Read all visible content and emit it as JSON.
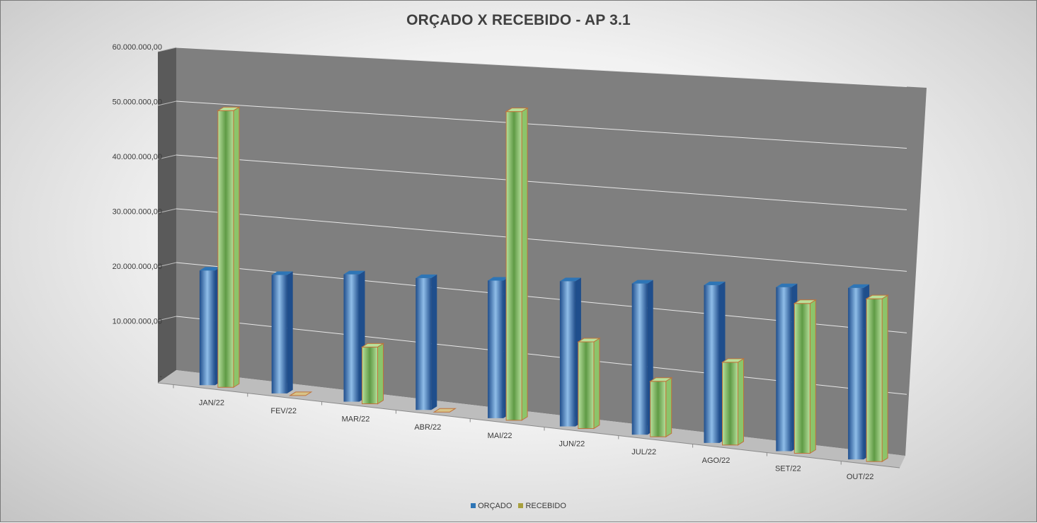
{
  "chart_data": {
    "type": "bar",
    "title": "ORÇADO X RECEBIDO - AP 3.1",
    "categories": [
      "JAN/22",
      "FEV/22",
      "MAR/22",
      "ABR/22",
      "MAI/22",
      "JUN/22",
      "JUL/22",
      "AGO/22",
      "SET/22",
      "OUT/22"
    ],
    "series": [
      {
        "name": "ORÇADO",
        "color": "#2e75b6",
        "values": [
          20800000,
          21200000,
          22500000,
          23000000,
          23700000,
          24700000,
          25400000,
          26200000,
          26900000,
          27800000
        ]
      },
      {
        "name": "RECEBIDO",
        "color": "#9bd27a",
        "values": [
          50000000,
          0,
          10000000,
          0,
          53000000,
          14700000,
          9300000,
          13700000,
          24500000,
          26300000
        ]
      }
    ],
    "y_ticks": [
      "-",
      "10.000.000,00",
      "20.000.000,00",
      "30.000.000,00",
      "40.000.000,00",
      "50.000.000,00",
      "60.000.000,00"
    ],
    "ylim": [
      0,
      60000000
    ],
    "grid": true,
    "legend_position": "bottom",
    "style": "3d-clustered-column"
  }
}
